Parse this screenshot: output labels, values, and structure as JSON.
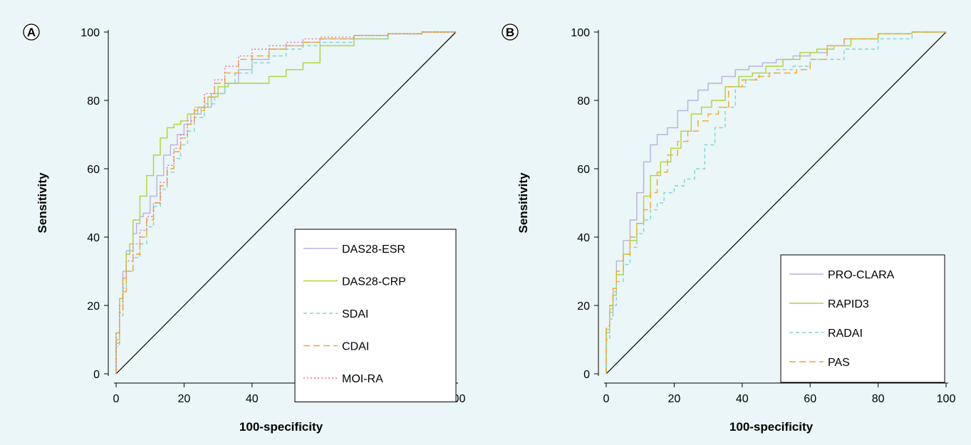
{
  "chart_data": [
    {
      "panel_label": "A",
      "type": "line",
      "xlabel": "100-specificity",
      "ylabel": "Sensitivity",
      "xlim": [
        0,
        100
      ],
      "ylim": [
        0,
        100
      ],
      "xticks": [
        0,
        20,
        40,
        60,
        80,
        100
      ],
      "yticks": [
        0,
        20,
        40,
        60,
        80,
        100
      ],
      "grid": false,
      "legend_position": "bottom-right",
      "reference_line": [
        [
          0,
          0
        ],
        [
          100,
          100
        ]
      ],
      "series": [
        {
          "name": "DAS28-ESR",
          "color": "#b9b0e0",
          "dash": "solid",
          "x": [
            0,
            1,
            2,
            3,
            5,
            6,
            7,
            8,
            10,
            12,
            14,
            16,
            18,
            20,
            22,
            25,
            28,
            32,
            36,
            40,
            45,
            50,
            55,
            60,
            70,
            80,
            90,
            100
          ],
          "y": [
            0,
            10,
            22,
            30,
            36,
            41,
            44,
            46,
            47,
            52,
            58,
            64,
            67,
            70,
            73,
            76,
            78,
            82,
            85,
            89,
            92,
            95,
            96,
            97,
            98,
            99,
            99.5,
            100
          ]
        },
        {
          "name": "DAS28-CRP",
          "color": "#b2d235",
          "dash": "solid",
          "x": [
            0,
            1,
            2,
            3,
            4,
            5,
            7,
            9,
            11,
            13,
            15,
            17,
            19,
            21,
            24,
            27,
            30,
            33,
            36,
            40,
            45,
            50,
            55,
            60,
            70,
            80,
            90,
            100
          ],
          "y": [
            0,
            12,
            22,
            28,
            35,
            38,
            45,
            52,
            58,
            64,
            69,
            72,
            73,
            74,
            76,
            78,
            81,
            84,
            85,
            85,
            85,
            87,
            89,
            91,
            96,
            98,
            99.5,
            100
          ]
        },
        {
          "name": "SDAI",
          "color": "#7fd3d3",
          "dash": "5,4",
          "x": [
            0,
            1,
            2,
            3,
            5,
            7,
            9,
            11,
            13,
            15,
            17,
            19,
            21,
            23,
            26,
            29,
            32,
            35,
            40,
            45,
            50,
            55,
            60,
            70,
            80,
            90,
            100
          ],
          "y": [
            0,
            8,
            17,
            25,
            30,
            34,
            38,
            43,
            49,
            54,
            59,
            63,
            67,
            71,
            75,
            79,
            82,
            85,
            88,
            91,
            93,
            95,
            96,
            97,
            98,
            99.5,
            100
          ]
        },
        {
          "name": "CDAI",
          "color": "#f5a623",
          "dash": "9,5",
          "x": [
            0,
            1,
            2,
            3,
            5,
            7,
            9,
            11,
            13,
            15,
            17,
            19,
            21,
            23,
            26,
            29,
            32,
            36,
            40,
            45,
            50,
            55,
            60,
            70,
            80,
            90,
            100
          ],
          "y": [
            0,
            9,
            18,
            24,
            30,
            35,
            40,
            45,
            50,
            55,
            60,
            65,
            69,
            73,
            77,
            81,
            85,
            88,
            92,
            93,
            95,
            96,
            97,
            98,
            99,
            99.5,
            100
          ]
        },
        {
          "name": "MOI-RA",
          "color": "#e8749a",
          "dash": "2,3",
          "x": [
            0,
            1,
            2,
            3,
            5,
            7,
            9,
            11,
            13,
            15,
            17,
            19,
            21,
            23,
            26,
            29,
            32,
            36,
            40,
            45,
            50,
            55,
            60,
            70,
            80,
            90,
            100
          ],
          "y": [
            0,
            12,
            20,
            28,
            33,
            38,
            42,
            46,
            50,
            56,
            61,
            66,
            70,
            74,
            78,
            82,
            86,
            90,
            93,
            95,
            96,
            97,
            98,
            98.5,
            99,
            99.5,
            100
          ]
        }
      ]
    },
    {
      "panel_label": "B",
      "type": "line",
      "xlabel": "100-specificity",
      "ylabel": "Sensitivity",
      "xlim": [
        0,
        100
      ],
      "ylim": [
        0,
        100
      ],
      "xticks": [
        0,
        20,
        40,
        60,
        80,
        100
      ],
      "yticks": [
        0,
        20,
        40,
        60,
        80,
        100
      ],
      "grid": false,
      "legend_position": "bottom-right",
      "reference_line": [
        [
          0,
          0
        ],
        [
          100,
          100
        ]
      ],
      "series": [
        {
          "name": "PRO-CLARA",
          "color": "#b9b0e0",
          "dash": "solid",
          "x": [
            0,
            1,
            2,
            3,
            5,
            7,
            9,
            11,
            13,
            15,
            18,
            21,
            24,
            27,
            30,
            34,
            38,
            42,
            46,
            50,
            55,
            60,
            65,
            70,
            80,
            90,
            100
          ],
          "y": [
            0,
            12,
            18,
            24,
            33,
            39,
            45,
            53,
            62,
            67,
            70,
            72,
            77,
            80,
            83,
            85,
            87,
            89,
            90,
            91,
            92,
            93,
            94,
            96,
            98,
            99.5,
            100
          ]
        },
        {
          "name": "RAPID3",
          "color": "#b2d235",
          "dash": "solid",
          "x": [
            0,
            1,
            2,
            3,
            5,
            7,
            9,
            11,
            13,
            16,
            19,
            22,
            25,
            28,
            31,
            35,
            39,
            43,
            47,
            52,
            57,
            62,
            67,
            72,
            80,
            90,
            100
          ],
          "y": [
            0,
            13,
            19,
            23,
            29,
            35,
            39,
            44,
            52,
            58,
            62,
            66,
            71,
            76,
            78,
            80,
            84,
            87,
            88,
            90,
            92,
            94,
            95,
            96,
            98,
            99.5,
            100
          ]
        },
        {
          "name": "RADAI",
          "color": "#7fd3d3",
          "dash": "5,4",
          "x": [
            0,
            1,
            2,
            3,
            5,
            7,
            9,
            11,
            13,
            15,
            17,
            20,
            23,
            26,
            29,
            32,
            35,
            38,
            41,
            45,
            50,
            55,
            60,
            70,
            80,
            90,
            100
          ],
          "y": [
            0,
            10,
            16,
            20,
            27,
            32,
            37,
            41,
            45,
            48,
            50,
            53,
            55,
            57,
            60,
            67,
            72,
            78,
            84,
            86,
            88,
            89,
            90,
            92,
            95,
            98,
            100
          ]
        },
        {
          "name": "PAS",
          "color": "#f5a623",
          "dash": "9,5",
          "x": [
            0,
            1,
            2,
            3,
            5,
            7,
            9,
            11,
            13,
            15,
            18,
            21,
            24,
            27,
            30,
            33,
            36,
            40,
            44,
            48,
            52,
            56,
            60,
            65,
            70,
            80,
            90,
            100
          ],
          "y": [
            0,
            14,
            20,
            25,
            30,
            35,
            40,
            44,
            48,
            53,
            59,
            64,
            68,
            71,
            74,
            76,
            78,
            84,
            86,
            87,
            88,
            88,
            89,
            92,
            96,
            98,
            99.5,
            100
          ]
        }
      ]
    }
  ]
}
